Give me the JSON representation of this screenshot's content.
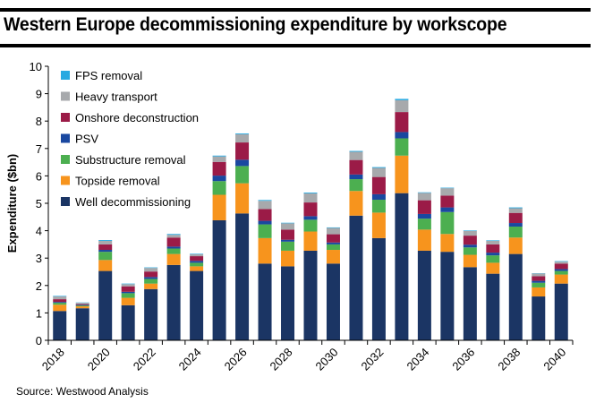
{
  "title": "Western Europe decommissioning expenditure by workscope",
  "source": "Source: Westwood Analysis",
  "chart_data": {
    "type": "bar",
    "stacked": true,
    "title": "Western Europe decommissioning expenditure by workscope",
    "xlabel": "",
    "ylabel": "Expenditure ($bn)",
    "ylim": [
      0,
      10
    ],
    "yticks": [
      0,
      1,
      2,
      3,
      4,
      5,
      6,
      7,
      8,
      9,
      10
    ],
    "grid": false,
    "legend_position": "top-left",
    "categories": [
      "2018",
      "2019",
      "2020",
      "2021",
      "2022",
      "2023",
      "2024",
      "2025",
      "2026",
      "2027",
      "2028",
      "2029",
      "2030",
      "2031",
      "2032",
      "2033",
      "2034",
      "2035",
      "2036",
      "2037",
      "2038",
      "2039",
      "2040"
    ],
    "xtick_labels": [
      "2018",
      "",
      "2020",
      "",
      "2022",
      "",
      "2024",
      "",
      "2026",
      "",
      "2028",
      "",
      "2030",
      "",
      "2032",
      "",
      "2034",
      "",
      "2036",
      "",
      "2038",
      "",
      "2040"
    ],
    "series": [
      {
        "name": "Well decommissioning",
        "color": "#1b3564",
        "values": [
          1.07,
          1.17,
          2.53,
          1.28,
          1.87,
          2.75,
          2.53,
          4.38,
          4.63,
          2.8,
          2.7,
          3.27,
          2.8,
          4.55,
          3.73,
          5.37,
          3.27,
          3.23,
          2.67,
          2.43,
          3.15,
          1.6,
          2.07
        ]
      },
      {
        "name": "Topside removal",
        "color": "#f7941d",
        "values": [
          0.23,
          0.07,
          0.4,
          0.27,
          0.2,
          0.4,
          0.17,
          0.93,
          1.1,
          0.93,
          0.57,
          0.7,
          0.5,
          0.9,
          0.93,
          1.37,
          0.77,
          0.65,
          0.45,
          0.4,
          0.6,
          0.33,
          0.33
        ]
      },
      {
        "name": "Substructure removal",
        "color": "#4caf50",
        "values": [
          0.07,
          0.03,
          0.3,
          0.17,
          0.17,
          0.2,
          0.13,
          0.5,
          0.63,
          0.5,
          0.33,
          0.43,
          0.2,
          0.43,
          0.47,
          0.63,
          0.4,
          0.8,
          0.27,
          0.27,
          0.4,
          0.17,
          0.13
        ]
      },
      {
        "name": "PSV",
        "color": "#1a48a0",
        "values": [
          0.03,
          0.02,
          0.07,
          0.05,
          0.07,
          0.07,
          0.07,
          0.2,
          0.23,
          0.13,
          0.07,
          0.13,
          0.07,
          0.17,
          0.2,
          0.23,
          0.17,
          0.17,
          0.1,
          0.1,
          0.13,
          0.07,
          0.07
        ]
      },
      {
        "name": "Onshore deconstruction",
        "color": "#9b1b47",
        "values": [
          0.1,
          0.03,
          0.2,
          0.2,
          0.2,
          0.33,
          0.17,
          0.5,
          0.63,
          0.43,
          0.37,
          0.5,
          0.3,
          0.53,
          0.63,
          0.73,
          0.5,
          0.43,
          0.33,
          0.3,
          0.37,
          0.17,
          0.2
        ]
      },
      {
        "name": "Heavy transport",
        "color": "#a7a9ac",
        "values": [
          0.1,
          0.05,
          0.13,
          0.08,
          0.13,
          0.1,
          0.07,
          0.2,
          0.3,
          0.3,
          0.23,
          0.33,
          0.23,
          0.3,
          0.33,
          0.43,
          0.27,
          0.27,
          0.17,
          0.13,
          0.17,
          0.1,
          0.07
        ]
      },
      {
        "name": "FPS removal",
        "color": "#27a9e1",
        "values": [
          0.02,
          0.01,
          0.03,
          0.02,
          0.02,
          0.03,
          0.02,
          0.03,
          0.03,
          0.03,
          0.02,
          0.03,
          0.02,
          0.03,
          0.03,
          0.05,
          0.02,
          0.02,
          0.02,
          0.02,
          0.03,
          0.01,
          0.02
        ]
      }
    ]
  }
}
